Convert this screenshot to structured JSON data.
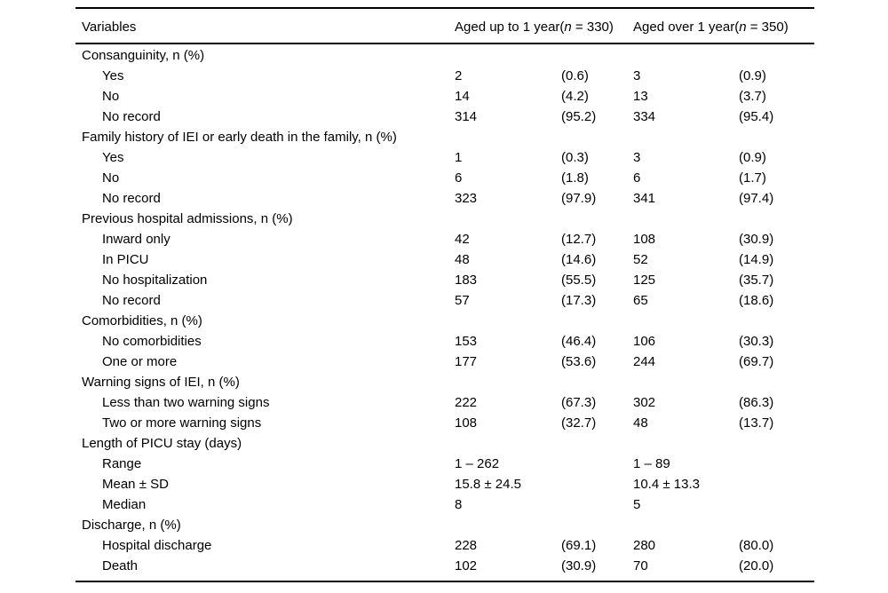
{
  "table": {
    "header": {
      "variables": "Variables",
      "group1": {
        "pre": "Aged up to 1 year(",
        "n": "n",
        "post": " = 330)"
      },
      "group2": {
        "pre": "Aged over 1 year(",
        "n": "n",
        "post": " = 350)"
      }
    },
    "rows": [
      {
        "label": "Consanguinity, n (%)",
        "indent": false,
        "v1": "",
        "p1": "",
        "v2": "",
        "p2": ""
      },
      {
        "label": "Yes",
        "indent": true,
        "v1": "2",
        "p1": "(0.6)",
        "v2": "3",
        "p2": "(0.9)"
      },
      {
        "label": "No",
        "indent": true,
        "v1": "14",
        "p1": "(4.2)",
        "v2": "13",
        "p2": "(3.7)"
      },
      {
        "label": "No record",
        "indent": true,
        "v1": "314",
        "p1": "(95.2)",
        "v2": "334",
        "p2": "(95.4)"
      },
      {
        "label": "Family history of IEI or early death in the family, n (%)",
        "indent": false,
        "v1": "",
        "p1": "",
        "v2": "",
        "p2": ""
      },
      {
        "label": "Yes",
        "indent": true,
        "v1": "1",
        "p1": "(0.3)",
        "v2": "3",
        "p2": "(0.9)"
      },
      {
        "label": "No",
        "indent": true,
        "v1": "6",
        "p1": "(1.8)",
        "v2": "6",
        "p2": "(1.7)"
      },
      {
        "label": "No record",
        "indent": true,
        "v1": "323",
        "p1": "(97.9)",
        "v2": "341",
        "p2": "(97.4)"
      },
      {
        "label": "Previous hospital admissions, n (%)",
        "indent": false,
        "v1": "",
        "p1": "",
        "v2": "",
        "p2": ""
      },
      {
        "label": "Inward only",
        "indent": true,
        "v1": "42",
        "p1": "(12.7)",
        "v2": "108",
        "p2": "(30.9)"
      },
      {
        "label": "In PICU",
        "indent": true,
        "v1": "48",
        "p1": "(14.6)",
        "v2": "52",
        "p2": "(14.9)"
      },
      {
        "label": "No hospitalization",
        "indent": true,
        "v1": "183",
        "p1": "(55.5)",
        "v2": "125",
        "p2": "(35.7)"
      },
      {
        "label": "No record",
        "indent": true,
        "v1": "57",
        "p1": "(17.3)",
        "v2": "65",
        "p2": "(18.6)"
      },
      {
        "label": "Comorbidities, n (%)",
        "indent": false,
        "v1": "",
        "p1": "",
        "v2": "",
        "p2": ""
      },
      {
        "label": "No comorbidities",
        "indent": true,
        "v1": "153",
        "p1": "(46.4)",
        "v2": "106",
        "p2": "(30.3)"
      },
      {
        "label": "One or more",
        "indent": true,
        "v1": "177",
        "p1": "(53.6)",
        "v2": "244",
        "p2": "(69.7)"
      },
      {
        "label": "Warning signs of IEI, n (%)",
        "indent": false,
        "v1": "",
        "p1": "",
        "v2": "",
        "p2": ""
      },
      {
        "label": "Less than two warning signs",
        "indent": true,
        "v1": "222",
        "p1": "(67.3)",
        "v2": "302",
        "p2": "(86.3)"
      },
      {
        "label": "Two or more warning signs",
        "indent": true,
        "v1": "108",
        "p1": "(32.7)",
        "v2": "48",
        "p2": "(13.7)"
      },
      {
        "label": "Length of PICU stay (days)",
        "indent": false,
        "v1": "",
        "p1": "",
        "v2": "",
        "p2": ""
      },
      {
        "label": "Range",
        "indent": true,
        "v1": "1 – 262",
        "p1": "",
        "v2": "1 – 89",
        "p2": ""
      },
      {
        "label": "Mean ± SD",
        "indent": true,
        "v1": "15.8 ± 24.5",
        "p1": "",
        "v2": "10.4 ± 13.3",
        "p2": ""
      },
      {
        "label": "Median",
        "indent": true,
        "v1": "8",
        "p1": "",
        "v2": "5",
        "p2": ""
      },
      {
        "label": "Discharge, n (%)",
        "indent": false,
        "v1": "",
        "p1": "",
        "v2": "",
        "p2": ""
      },
      {
        "label": "Hospital discharge",
        "indent": true,
        "v1": "228",
        "p1": "(69.1)",
        "v2": "280",
        "p2": "(80.0)"
      },
      {
        "label": "Death",
        "indent": true,
        "v1": "102",
        "p1": "(30.9)",
        "v2": "70",
        "p2": "(20.0)"
      }
    ]
  }
}
